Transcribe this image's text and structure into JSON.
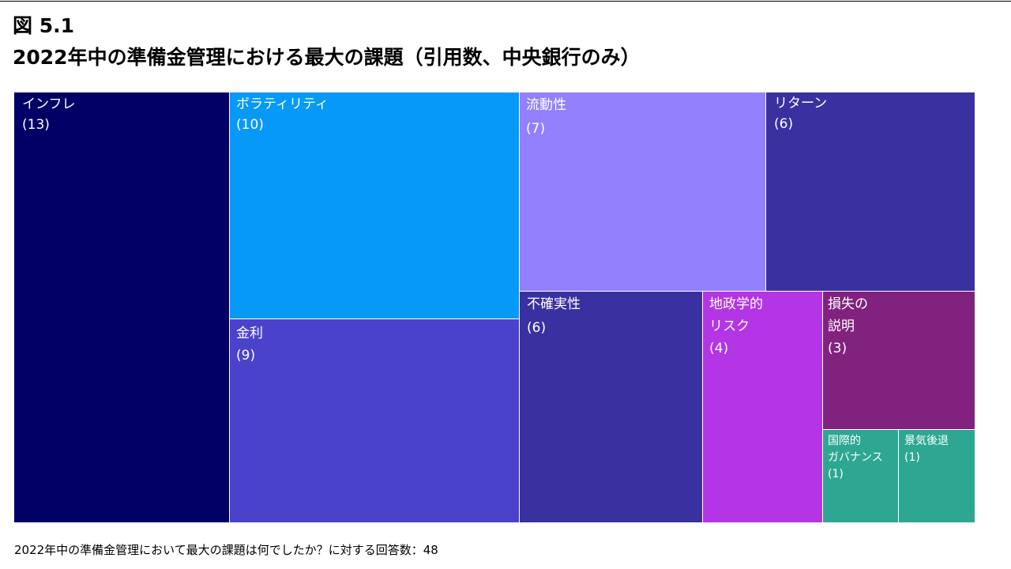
{
  "figure_label": "図 5.1",
  "title": "2022年中の準備金管理における最大の課題（引用数、中央銀行のみ）",
  "footnote": "2022年中の準備金管理において最大の課題は何でしたか？に対する回答数：48",
  "chart_data": {
    "type": "treemap",
    "title": "2022年中の準備金管理における最大の課題（引用数、中央銀行のみ）",
    "unit": "引用数",
    "total_respondents": 48,
    "items": [
      {
        "name": "インフレ",
        "value": 13,
        "value_label": "(13)",
        "color": "#000066"
      },
      {
        "name": "ボラティリティ",
        "value": 10,
        "value_label": "(10)",
        "color": "#0799f7"
      },
      {
        "name": "金利",
        "value": 9,
        "value_label": "(9)",
        "color": "#4b42cb"
      },
      {
        "name": "流動性",
        "value": 7,
        "value_label": "(7)",
        "color": "#9280fd"
      },
      {
        "name": "リターン",
        "value": 6,
        "value_label": "(6)",
        "color": "#3a31a0"
      },
      {
        "name": "不確実性",
        "value": 6,
        "value_label": "(6)",
        "color": "#3a31a0"
      },
      {
        "name": "地政学的リスク",
        "value": 4,
        "value_label": "(4)",
        "color": "#b335e6",
        "label_lines": [
          "地政学的",
          "リスク"
        ]
      },
      {
        "name": "損失の説明",
        "value": 3,
        "value_label": "(3)",
        "color": "#82227f",
        "label_lines": [
          "損失の",
          "説明"
        ]
      },
      {
        "name": "国際的ガバナンス",
        "value": 1,
        "value_label": "(1)",
        "color": "#2da792",
        "label_lines": [
          "国際的",
          "ガバナンス"
        ]
      },
      {
        "name": "景気後退",
        "value": 1,
        "value_label": "(1)",
        "color": "#2da792"
      }
    ]
  }
}
